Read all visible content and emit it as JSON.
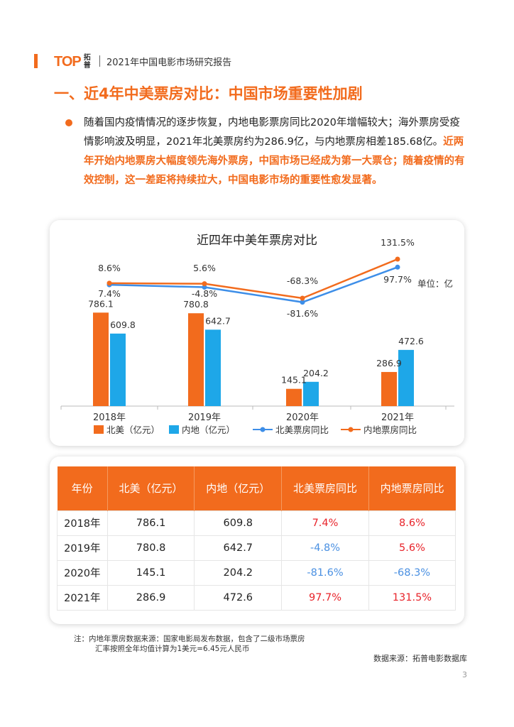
{
  "header": {
    "logo_text": "TOP",
    "logo_sub": "拓普",
    "report_title": "2021年中国电影市场研究报告"
  },
  "section": {
    "title": "一、近4年中美票房对比：中国市场重要性加剧"
  },
  "paragraph": {
    "normal": "随着国内疫情情况的逐步恢复，内地电影票房同比2020年增幅较大；海外票房受疫情影响波及明显，2021年北美票房约为286.9亿，与内地票房相差185.68亿。",
    "highlight": "近两年开始内地票房大幅度领先海外票房，中国市场已经成为第一大票仓；随着疫情的有效控制，这一差距将持续拉大，中国电影市场的重要性愈发显著。"
  },
  "chart_data": {
    "type": "bar",
    "title": "近四年中美年票房对比",
    "unit_label": "单位：亿",
    "categories": [
      "2018年",
      "2019年",
      "2020年",
      "2021年"
    ],
    "series": [
      {
        "name": "北美（亿元）",
        "kind": "bar",
        "color": "#f26b1d",
        "values": [
          786.1,
          780.8,
          145.1,
          286.9
        ],
        "labels": [
          "786.1",
          "780.8",
          "145.1",
          "286.9"
        ]
      },
      {
        "name": "内地（亿元）",
        "kind": "bar",
        "color": "#1ea7e8",
        "values": [
          609.8,
          642.7,
          204.2,
          472.6
        ],
        "labels": [
          "609.8",
          "642.7",
          "204.2",
          "472.6"
        ]
      },
      {
        "name": "北美票房同比",
        "kind": "line",
        "color": "#3d8ee8",
        "values": [
          7.4,
          -4.8,
          -81.6,
          97.7
        ],
        "labels": [
          "7.4%",
          "-4.8%",
          "-81.6%",
          "97.7%"
        ]
      },
      {
        "name": "内地票房同比",
        "kind": "line",
        "color": "#f26b1d",
        "values": [
          8.6,
          5.6,
          -68.3,
          131.5
        ],
        "labels": [
          "8.6%",
          "5.6%",
          "-68.3%",
          "131.5%"
        ]
      }
    ]
  },
  "table": {
    "headers": [
      "年份",
      "北美（亿元）",
      "内地（亿元）",
      "北美票房同比",
      "内地票房同比"
    ],
    "rows": [
      [
        "2018年",
        "786.1",
        "609.8",
        "7.4%",
        "8.6%"
      ],
      [
        "2019年",
        "780.8",
        "642.7",
        "-4.8%",
        "5.6%"
      ],
      [
        "2020年",
        "145.1",
        "204.2",
        "-81.6%",
        "-68.3%"
      ],
      [
        "2021年",
        "286.9",
        "472.6",
        "97.7%",
        "131.5%"
      ]
    ]
  },
  "notes": {
    "line1": "注：内地年票房数据来源：国家电影局发布数据，包含了二级市场票房",
    "line2": "汇率按照全年均值计算为1美元=6.45元人民币",
    "source": "数据来源：拓普电影数据库",
    "page": "3"
  },
  "colors": {
    "accent": "#f26b1d",
    "blue": "#1ea7e8",
    "line_blue": "#3d8ee8",
    "neg": "#4a90e2",
    "pos": "#e8242b"
  }
}
